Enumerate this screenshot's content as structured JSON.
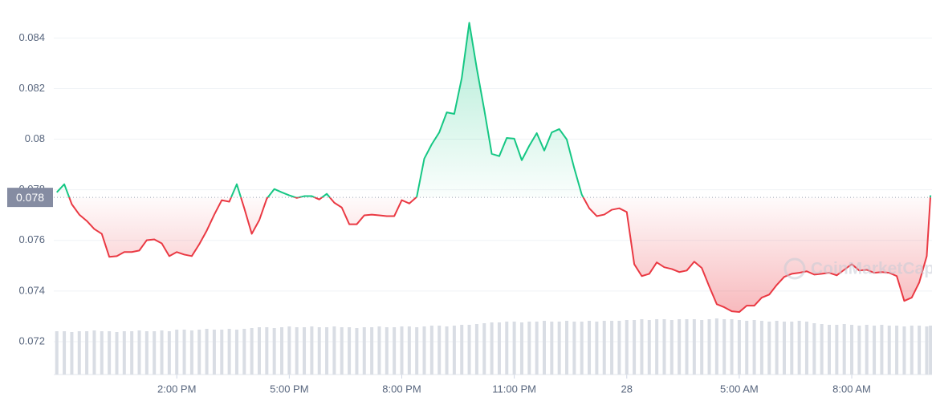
{
  "chart_data": {
    "type": "line",
    "x": [
      10.8,
      11.0,
      11.2,
      11.4,
      11.6,
      11.8,
      12.0,
      12.2,
      12.4,
      12.6,
      12.8,
      13.0,
      13.2,
      13.4,
      13.6,
      13.8,
      14.0,
      14.2,
      14.4,
      14.6,
      14.8,
      15.0,
      15.2,
      15.4,
      15.6,
      15.8,
      16.0,
      16.2,
      16.4,
      16.6,
      16.8,
      17.0,
      17.2,
      17.4,
      17.6,
      17.8,
      18.0,
      18.2,
      18.4,
      18.6,
      18.8,
      19.0,
      19.2,
      19.4,
      19.6,
      19.8,
      20.0,
      20.2,
      20.4,
      20.6,
      20.8,
      21.0,
      21.2,
      21.4,
      21.6,
      21.8,
      22.0,
      22.2,
      22.4,
      22.6,
      22.8,
      23.0,
      23.2,
      23.4,
      23.6,
      23.8,
      24.0,
      24.2,
      24.4,
      24.6,
      24.8,
      25.0,
      25.2,
      25.4,
      25.6,
      25.8,
      26.0,
      26.2,
      26.4,
      26.6,
      26.8,
      27.0,
      27.2,
      27.4,
      27.6,
      27.8,
      28.0,
      28.2,
      28.4,
      28.6,
      28.8,
      29.0,
      29.2,
      29.4,
      29.6,
      29.8,
      30.0,
      30.2,
      30.4,
      30.6,
      30.8,
      31.0,
      31.2,
      31.4,
      31.6,
      31.8,
      32.0,
      32.2,
      32.4,
      32.6,
      32.8,
      33.0,
      33.2,
      33.4,
      33.6,
      33.8,
      34.0,
      34.1
    ],
    "values": [
      0.0779,
      0.07822,
      0.07743,
      0.07702,
      0.07677,
      0.07645,
      0.07626,
      0.07535,
      0.07538,
      0.07554,
      0.07554,
      0.0756,
      0.07601,
      0.07604,
      0.07588,
      0.07538,
      0.07554,
      0.07544,
      0.07538,
      0.07585,
      0.07639,
      0.07702,
      0.07759,
      0.07753,
      0.07822,
      0.07727,
      0.07626,
      0.0768,
      0.07765,
      0.07803,
      0.0779,
      0.07778,
      0.07768,
      0.07775,
      0.07775,
      0.07762,
      0.07784,
      0.07749,
      0.0773,
      0.07664,
      0.07664,
      0.07699,
      0.07702,
      0.07699,
      0.07696,
      0.07696,
      0.07759,
      0.07746,
      0.07772,
      0.07923,
      0.0798,
      0.08027,
      0.08106,
      0.081,
      0.08242,
      0.0846,
      0.0828,
      0.08116,
      0.07942,
      0.07933,
      0.08005,
      0.08002,
      0.07917,
      0.07974,
      0.08024,
      0.07955,
      0.08027,
      0.0804,
      0.07999,
      0.07885,
      0.07781,
      0.07727,
      0.07696,
      0.07702,
      0.07721,
      0.07727,
      0.07712,
      0.07506,
      0.07459,
      0.07468,
      0.07513,
      0.07494,
      0.07487,
      0.07475,
      0.07481,
      0.07516,
      0.07491,
      0.07418,
      0.07348,
      0.07336,
      0.0732,
      0.07317,
      0.07342,
      0.07342,
      0.07374,
      0.07386,
      0.07424,
      0.07456,
      0.07468,
      0.07472,
      0.07478,
      0.07465,
      0.07468,
      0.07472,
      0.07462,
      0.07484,
      0.07506,
      0.07481,
      0.07484,
      0.07472,
      0.07475,
      0.07472,
      0.07459,
      0.07361,
      0.07374,
      0.07434,
      0.07538,
      0.07778
    ],
    "volume": [
      54,
      54,
      53,
      54,
      54,
      55,
      54,
      54,
      53,
      54,
      54,
      55,
      54,
      54,
      55,
      54,
      56,
      56,
      55,
      56,
      57,
      56,
      56,
      57,
      56,
      57,
      58,
      59,
      59,
      58,
      59,
      60,
      59,
      59,
      60,
      59,
      59,
      60,
      59,
      59,
      58,
      59,
      59,
      60,
      59,
      59,
      60,
      60,
      59,
      60,
      61,
      61,
      60,
      61,
      62,
      62,
      63,
      64,
      65,
      65,
      66,
      66,
      65,
      66,
      66,
      67,
      66,
      66,
      67,
      66,
      66,
      67,
      66,
      67,
      67,
      67,
      68,
      68,
      69,
      68,
      69,
      69,
      68,
      69,
      69,
      69,
      68,
      69,
      70,
      69,
      69,
      68,
      67,
      68,
      67,
      66,
      67,
      66,
      66,
      67,
      66,
      64,
      63,
      62,
      62,
      63,
      62,
      61,
      62,
      61,
      62,
      61,
      61,
      60,
      61,
      61,
      60,
      61
    ],
    "color_up": "#16c784",
    "color_down": "#ea3943",
    "volume_color": "#d9dde4",
    "baseline": {
      "value": 0.0777,
      "label": "0.078"
    },
    "xlim": [
      10.72,
      34.14
    ],
    "ylim": [
      0.0707,
      0.0855
    ],
    "xticks": [
      {
        "value": 14,
        "label": "2:00 PM"
      },
      {
        "value": 17,
        "label": "5:00 PM"
      },
      {
        "value": 20,
        "label": "8:00 PM"
      },
      {
        "value": 23,
        "label": "11:00 PM"
      },
      {
        "value": 26,
        "label": "28"
      },
      {
        "value": 29,
        "label": "5:00 AM"
      },
      {
        "value": 32,
        "label": "8:00 AM"
      }
    ],
    "yticks": [
      0.072,
      0.074,
      0.076,
      0.078,
      0.08,
      0.082,
      0.084
    ],
    "grid": true,
    "watermark": "CoinMarketCap"
  }
}
